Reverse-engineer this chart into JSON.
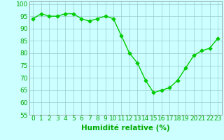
{
  "x": [
    0,
    1,
    2,
    3,
    4,
    5,
    6,
    7,
    8,
    9,
    10,
    11,
    12,
    13,
    14,
    15,
    16,
    17,
    18,
    19,
    20,
    21,
    22,
    23
  ],
  "y": [
    94,
    96,
    95,
    95,
    96,
    96,
    94,
    93,
    94,
    95,
    94,
    87,
    80,
    76,
    69,
    64,
    65,
    66,
    69,
    74,
    79,
    81,
    82,
    86
  ],
  "line_color": "#00cc00",
  "marker_color": "#00cc00",
  "bg_color": "#ccffff",
  "grid_color": "#99cccc",
  "xlabel": "Humidité relative (%)",
  "xlabel_color": "#00aa00",
  "ylim": [
    55,
    101
  ],
  "yticks": [
    55,
    60,
    65,
    70,
    75,
    80,
    85,
    90,
    95,
    100
  ],
  "xlim": [
    -0.5,
    23.5
  ],
  "xticks": [
    0,
    1,
    2,
    3,
    4,
    5,
    6,
    7,
    8,
    9,
    10,
    11,
    12,
    13,
    14,
    15,
    16,
    17,
    18,
    19,
    20,
    21,
    22,
    23
  ],
  "tick_fontsize": 6.5,
  "xlabel_fontsize": 7.5,
  "marker_size": 2.8,
  "line_width": 1.0
}
